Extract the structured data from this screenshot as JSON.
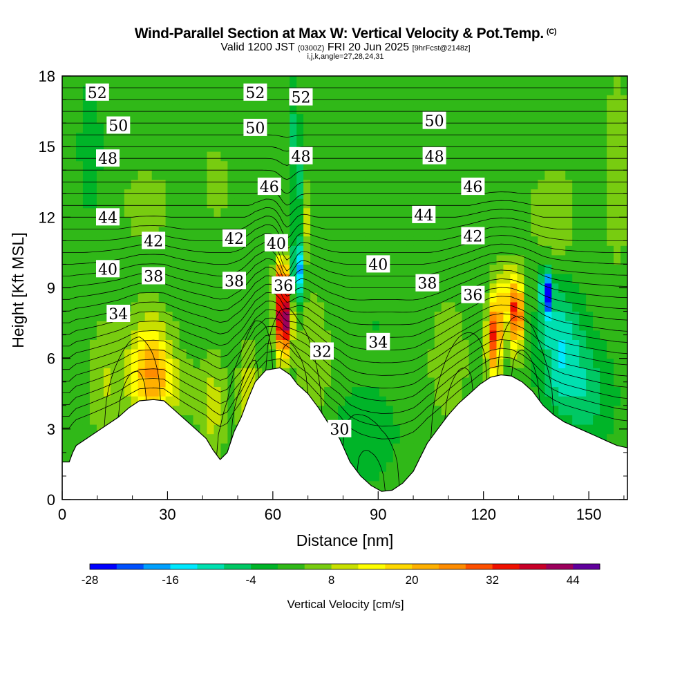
{
  "title": {
    "main": "Wind-Parallel Section at Max W: Vertical Velocity & Pot.Temp.",
    "copyright": "(C)",
    "valid_prefix": "Valid 1200 JST",
    "valid_utc": "(0300Z)",
    "valid_date": "FRI 20 Jun 2025",
    "forecast": "[9hrFcst@2148z]",
    "indices": "i,j,k,angle=27,28,24,31"
  },
  "chart_data": {
    "type": "heatmap",
    "xlabel": "Distance [nm]",
    "ylabel": "Height [Kft MSL]",
    "xlim": [
      0,
      161
    ],
    "ylim": [
      0,
      18
    ],
    "x_ticks": [
      0,
      30,
      60,
      90,
      120,
      150
    ],
    "y_ticks": [
      0,
      3,
      6,
      9,
      12,
      15,
      18
    ],
    "colorbar": {
      "label": "Vertical Velocity [cm/s]",
      "tick_labels": [
        -28,
        -16,
        -4,
        8,
        20,
        32,
        44
      ],
      "colors": [
        "#0000ff",
        "#0050ff",
        "#00a0ff",
        "#00e8ff",
        "#00e0b0",
        "#00c864",
        "#00b428",
        "#30b818",
        "#78cc10",
        "#c8e000",
        "#ffff00",
        "#ffd800",
        "#ffb000",
        "#ff8c00",
        "#ff5000",
        "#f01000",
        "#c80028",
        "#9c005c",
        "#60009c"
      ]
    },
    "terrain_kft": [
      [
        0,
        1.6
      ],
      [
        2,
        1.6
      ],
      [
        3,
        2.0
      ],
      [
        4,
        2.3
      ],
      [
        7,
        2.6
      ],
      [
        10,
        2.9
      ],
      [
        13,
        3.2
      ],
      [
        16,
        3.5
      ],
      [
        19,
        3.9
      ],
      [
        22,
        4.2
      ],
      [
        26,
        4.25
      ],
      [
        29,
        4.2
      ],
      [
        32,
        3.8
      ],
      [
        35,
        3.4
      ],
      [
        38,
        3.0
      ],
      [
        41,
        2.6
      ],
      [
        43,
        2.1
      ],
      [
        45,
        1.7
      ],
      [
        47,
        2.0
      ],
      [
        49,
        2.9
      ],
      [
        51,
        3.5
      ],
      [
        53,
        4.3
      ],
      [
        55,
        5.0
      ],
      [
        58,
        5.5
      ],
      [
        62,
        5.6
      ],
      [
        65,
        5.3
      ],
      [
        67,
        4.9
      ],
      [
        70,
        4.5
      ],
      [
        73,
        3.9
      ],
      [
        76,
        3.2
      ],
      [
        79,
        2.6
      ],
      [
        82,
        1.6
      ],
      [
        85,
        1.0
      ],
      [
        88,
        0.6
      ],
      [
        91,
        0.35
      ],
      [
        94,
        0.4
      ],
      [
        97,
        0.7
      ],
      [
        100,
        1.2
      ],
      [
        102,
        1.8
      ],
      [
        104,
        2.4
      ],
      [
        107,
        3.0
      ],
      [
        110,
        3.6
      ],
      [
        113,
        4.1
      ],
      [
        116,
        4.5
      ],
      [
        119,
        4.9
      ],
      [
        122,
        5.2
      ],
      [
        125,
        5.3
      ],
      [
        128,
        5.25
      ],
      [
        131,
        5.0
      ],
      [
        134,
        4.6
      ],
      [
        137,
        4.0
      ],
      [
        140,
        3.6
      ],
      [
        143,
        3.3
      ],
      [
        146,
        3.1
      ],
      [
        149,
        2.9
      ],
      [
        152,
        2.7
      ],
      [
        155,
        2.5
      ],
      [
        158,
        2.3
      ],
      [
        161,
        2.2
      ]
    ],
    "theta_contour_values": [
      30,
      32,
      34,
      36,
      38,
      40,
      42,
      44,
      46,
      48,
      50,
      52
    ],
    "contour_labels": [
      {
        "text": "52",
        "x": 10,
        "y": 17.3
      },
      {
        "text": "52",
        "x": 55,
        "y": 17.3
      },
      {
        "text": "52",
        "x": 68,
        "y": 17.1
      },
      {
        "text": "50",
        "x": 16,
        "y": 15.9
      },
      {
        "text": "50",
        "x": 55,
        "y": 15.8
      },
      {
        "text": "50",
        "x": 106,
        "y": 16.1
      },
      {
        "text": "48",
        "x": 13,
        "y": 14.5
      },
      {
        "text": "48",
        "x": 68,
        "y": 14.6
      },
      {
        "text": "48",
        "x": 106,
        "y": 14.6
      },
      {
        "text": "46",
        "x": 59,
        "y": 13.3
      },
      {
        "text": "46",
        "x": 117,
        "y": 13.3
      },
      {
        "text": "44",
        "x": 13,
        "y": 12.0
      },
      {
        "text": "44",
        "x": 103,
        "y": 12.1
      },
      {
        "text": "42",
        "x": 26,
        "y": 11.0
      },
      {
        "text": "42",
        "x": 49,
        "y": 11.1
      },
      {
        "text": "42",
        "x": 117,
        "y": 11.2
      },
      {
        "text": "40",
        "x": 61,
        "y": 10.9
      },
      {
        "text": "40",
        "x": 13,
        "y": 9.8
      },
      {
        "text": "40",
        "x": 90,
        "y": 10.0
      },
      {
        "text": "38",
        "x": 26,
        "y": 9.5
      },
      {
        "text": "38",
        "x": 49,
        "y": 9.3
      },
      {
        "text": "38",
        "x": 104,
        "y": 9.2
      },
      {
        "text": "36",
        "x": 63,
        "y": 9.1
      },
      {
        "text": "36",
        "x": 117,
        "y": 8.7
      },
      {
        "text": "34",
        "x": 16,
        "y": 7.9
      },
      {
        "text": "34",
        "x": 90,
        "y": 6.7
      },
      {
        "text": "32",
        "x": 74,
        "y": 6.3
      },
      {
        "text": "30",
        "x": 79,
        "y": 3.0
      }
    ],
    "w_features": [
      {
        "x": 25,
        "y": 5.8,
        "sx": 6,
        "sy": 2.0,
        "w": 18
      },
      {
        "x": 28,
        "y": 4.8,
        "sx": 8,
        "sy": 1.2,
        "w": 8
      },
      {
        "x": 12,
        "y": 5.0,
        "sx": 4,
        "sy": 2.5,
        "w": 6
      },
      {
        "x": 43,
        "y": 4.0,
        "sx": 4,
        "sy": 2.0,
        "w": 8
      },
      {
        "x": 53,
        "y": 4.5,
        "sx": 2.5,
        "sy": 2.0,
        "w": 10
      },
      {
        "x": 63,
        "y": 7.6,
        "sx": 2.0,
        "sy": 1.5,
        "w": 46
      },
      {
        "x": 62.5,
        "y": 9.3,
        "sx": 1.8,
        "sy": 1.0,
        "w": 22
      },
      {
        "x": 67,
        "y": 9.8,
        "sx": 1.3,
        "sy": 1.3,
        "w": -26
      },
      {
        "x": 67,
        "y": 13.0,
        "sx": 1.2,
        "sy": 2.0,
        "w": -12
      },
      {
        "x": 66,
        "y": 16.0,
        "sx": 1.5,
        "sy": 2.0,
        "w": -6
      },
      {
        "x": 69,
        "y": 11.8,
        "sx": 1.2,
        "sy": 1.5,
        "w": 10
      },
      {
        "x": 72,
        "y": 6.0,
        "sx": 5,
        "sy": 3.0,
        "w": 5
      },
      {
        "x": 86,
        "y": 2.8,
        "sx": 9,
        "sy": 2.0,
        "w": -6
      },
      {
        "x": 90,
        "y": 7.5,
        "sx": 12,
        "sy": 1.5,
        "w": -2
      },
      {
        "x": 110,
        "y": 6.0,
        "sx": 5,
        "sy": 2.5,
        "w": 6
      },
      {
        "x": 123,
        "y": 6.8,
        "sx": 2.0,
        "sy": 1.5,
        "w": 30
      },
      {
        "x": 129.5,
        "y": 7.9,
        "sx": 1.6,
        "sy": 1.4,
        "w": 34
      },
      {
        "x": 126,
        "y": 8.5,
        "sx": 3,
        "sy": 1.5,
        "w": 14
      },
      {
        "x": 138,
        "y": 8.8,
        "sx": 1.5,
        "sy": 1.0,
        "w": -26
      },
      {
        "x": 142,
        "y": 6.5,
        "sx": 6,
        "sy": 2.5,
        "w": -14
      },
      {
        "x": 150,
        "y": 4.5,
        "sx": 7,
        "sy": 2.0,
        "w": -8
      },
      {
        "x": 140,
        "y": 12.0,
        "sx": 6,
        "sy": 2.0,
        "w": 6
      },
      {
        "x": 24,
        "y": 12.5,
        "sx": 6,
        "sy": 1.5,
        "w": 5
      },
      {
        "x": 44,
        "y": 13.5,
        "sx": 3,
        "sy": 1.5,
        "w": 5
      },
      {
        "x": 8,
        "y": 15.0,
        "sx": 3,
        "sy": 2.5,
        "w": -6
      },
      {
        "x": 158,
        "y": 14.0,
        "sx": 3,
        "sy": 4.0,
        "w": 6
      }
    ]
  }
}
